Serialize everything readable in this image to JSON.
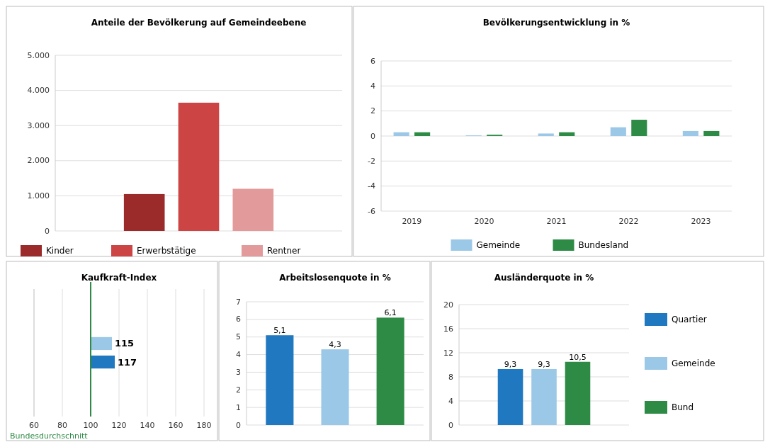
{
  "chart_data": [
    {
      "type": "bar",
      "title": "Anteile der Bevölkerung auf Gemeindeebene",
      "categories": [
        null
      ],
      "series": [
        {
          "name": "Kinder",
          "color": "#9b2a2a",
          "values": [
            1050
          ]
        },
        {
          "name": "Erwerbstätige",
          "color": "#cc4444",
          "values": [
            3650
          ]
        },
        {
          "name": "Rentner",
          "color": "#e39a9a",
          "values": [
            1200
          ]
        }
      ],
      "ylim": [
        0,
        5000
      ],
      "yticks": [
        0,
        {
          "value": 1000,
          "label": "1.000"
        },
        {
          "value": 2000,
          "label": "2.000"
        },
        {
          "value": 3000,
          "label": "3.000"
        },
        {
          "value": 4000,
          "label": "4.000"
        },
        {
          "value": 5000,
          "label": "5.000"
        }
      ],
      "grid": "y",
      "legend": "bottom"
    },
    {
      "type": "bar",
      "title": "Bevölkerungsentwicklung in %",
      "categories": [
        "2019",
        "2020",
        "2021",
        "2022",
        "2023"
      ],
      "series": [
        {
          "name": "Gemeinde",
          "color": "#9cc8e8",
          "values": [
            0.3,
            0.05,
            0.2,
            0.7,
            0.4
          ]
        },
        {
          "name": "Bundesland",
          "color": "#2e8b45",
          "values": [
            0.3,
            0.1,
            0.3,
            1.3,
            0.4
          ]
        }
      ],
      "ylim": [
        -6,
        6
      ],
      "yticks": [
        -6,
        -4,
        -2,
        0,
        2,
        4,
        6
      ],
      "grid": "y",
      "legend": "bottom"
    },
    {
      "type": "bar",
      "title": "Kaufkraft-Index",
      "orientation": "horizontal",
      "categories": [
        null,
        null
      ],
      "values": [
        15,
        17
      ],
      "value_labels": [
        "115",
        "117"
      ],
      "base": [
        100,
        100
      ],
      "colors": [
        "#9cc8e8",
        "#1f78c0"
      ],
      "xlim": [
        60,
        180
      ],
      "xticks": [
        60,
        80,
        100,
        120,
        140,
        160,
        180
      ],
      "grid": "x",
      "ref_lines": [
        {
          "axis": "x",
          "value": 100,
          "label": "Bundesdurchschnitt",
          "color": "#2e8b45"
        }
      ]
    },
    {
      "type": "bar",
      "title": "Arbeitslosenquote in %",
      "categories": [
        null,
        null,
        null
      ],
      "values": [
        5.1,
        4.3,
        6.1
      ],
      "colors": [
        "#1f78c0",
        "#9cc8e8",
        "#2e8b45"
      ],
      "value_labels": [
        "5,1",
        "4,3",
        "6,1"
      ],
      "ylim": [
        0,
        7
      ],
      "yticks": [
        0,
        1,
        2,
        3,
        4,
        5,
        6,
        7
      ],
      "grid": "y"
    },
    {
      "type": "bar",
      "title": "Ausländerquote in %",
      "categories": [
        null
      ],
      "series": [
        {
          "name": "Quartier",
          "color": "#1f78c0",
          "values": [
            9.3
          ],
          "value_labels": [
            "9,3"
          ]
        },
        {
          "name": "Gemeinde",
          "color": "#9cc8e8",
          "values": [
            9.3
          ],
          "value_labels": [
            "9,3"
          ]
        },
        {
          "name": "Bund",
          "color": "#2e8b45",
          "values": [
            10.5
          ],
          "value_labels": [
            "10,5"
          ]
        }
      ],
      "ylim": [
        0,
        20
      ],
      "yticks": [
        0,
        4,
        8,
        12,
        16,
        20
      ],
      "grid": "y",
      "legend": "right"
    }
  ]
}
